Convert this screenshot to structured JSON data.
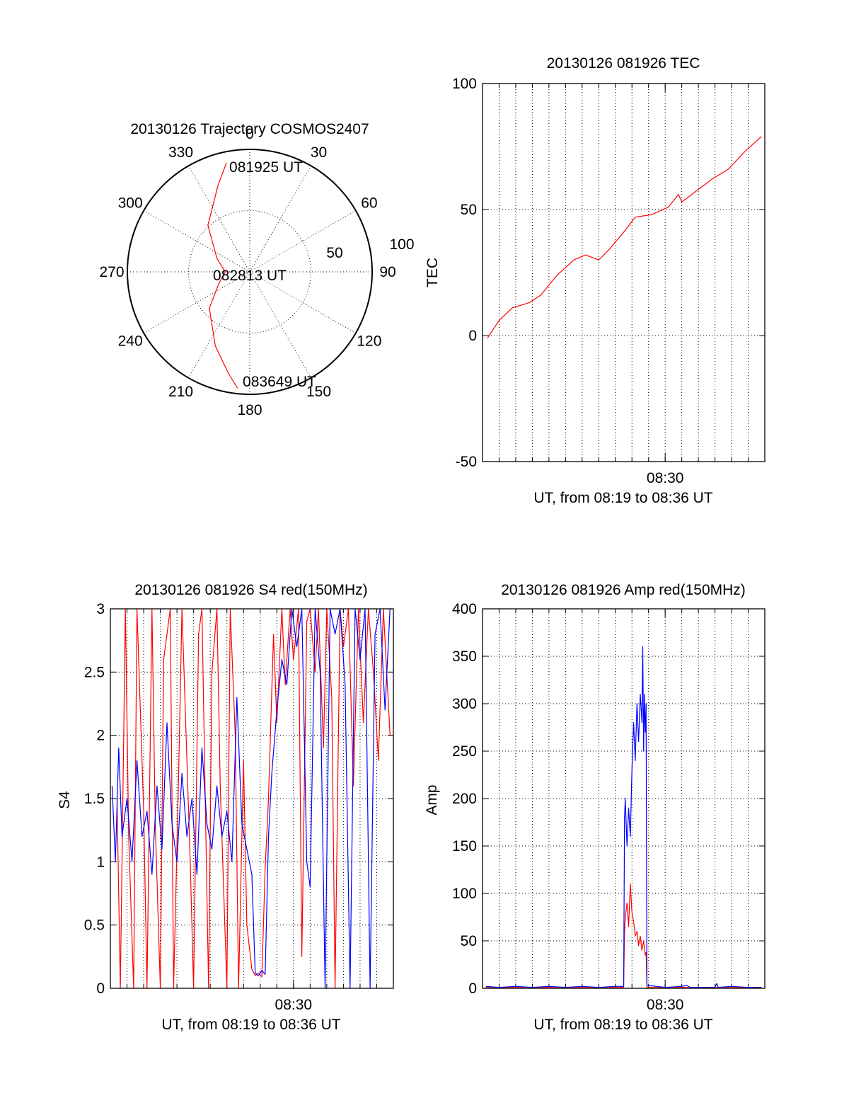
{
  "colors": {
    "red_channel": "#ff0000",
    "blue_channel": "#0000ff",
    "axes": "#000000",
    "grid": "#000000"
  },
  "chart_data": [
    {
      "id": "polar",
      "type": "polar",
      "title": "20130126 Trajectory COSMOS2407",
      "angle_labels": [
        "0",
        "30",
        "60",
        "90",
        "120",
        "150",
        "180",
        "210",
        "240",
        "270",
        "300",
        "330"
      ],
      "radius_labels": [
        "100",
        "50"
      ],
      "rlim": [
        0,
        100
      ],
      "grid": true,
      "annotations": [
        {
          "text": "081925 UT",
          "azimuth": 348,
          "elevation": 8
        },
        {
          "text": "082813 UT",
          "azimuth": 0,
          "elevation": 90
        },
        {
          "text": "083649 UT",
          "azimuth": 186,
          "elevation": 4
        }
      ],
      "series": [
        {
          "color": "#ff0000",
          "points": [
            [
              348,
              8
            ],
            [
              340,
              22
            ],
            [
              318,
              44
            ],
            [
              292,
              64
            ],
            [
              270,
              72
            ],
            [
              250,
              66
            ],
            [
              228,
              50
            ],
            [
              205,
              30
            ],
            [
              192,
              14
            ],
            [
              186,
              4
            ]
          ]
        }
      ]
    },
    {
      "id": "tec",
      "type": "line",
      "title": "20130126 081926 TEC",
      "xlabel": "UT, from 08:19 to 08:36 UT",
      "ylabel": "TEC",
      "xlim": [
        0,
        17
      ],
      "ylim": [
        -50,
        100
      ],
      "yticks": [
        "-50",
        "0",
        "50",
        "100"
      ],
      "xtick_label": "08:30",
      "xtick_at": 11,
      "grid": true,
      "series": [
        {
          "color": "#ff0000",
          "x": [
            0.3,
            1.0,
            1.8,
            2.8,
            3.5,
            4.5,
            5.5,
            6.2,
            7.0,
            7.6,
            8.5,
            9.2,
            10.2,
            11.2,
            11.8,
            12.0,
            12.8,
            13.8,
            14.8,
            15.8,
            16.8
          ],
          "y": [
            -1,
            6,
            11,
            13,
            16,
            24,
            30,
            32,
            30,
            34,
            41,
            47,
            48,
            51,
            56,
            53,
            57,
            62,
            66,
            73,
            79
          ]
        }
      ]
    },
    {
      "id": "s4",
      "type": "line",
      "title": "20130126 081926 S4 red(150MHz)",
      "xlabel": "UT, from 08:19 to 08:36 UT",
      "ylabel": "S4",
      "xlim": [
        0,
        17
      ],
      "ylim": [
        0,
        3
      ],
      "yticks": [
        "0",
        "0.5",
        "1",
        "1.5",
        "2",
        "2.5",
        "3"
      ],
      "xtick_label": "08:30",
      "xtick_at": 11,
      "grid": true,
      "series": [
        {
          "color": "#ff0000",
          "x": [
            0.4,
            0.6,
            0.9,
            1.1,
            1.4,
            1.6,
            2.0,
            2.2,
            2.5,
            2.7,
            3.0,
            3.2,
            3.6,
            3.8,
            4.1,
            4.3,
            4.8,
            5.0,
            5.3,
            5.5,
            5.9,
            6.1,
            6.4,
            6.6,
            7.0,
            7.2,
            7.5,
            7.7,
            8.0,
            8.2,
            8.5,
            8.7,
            8.9,
            9.1,
            9.3,
            9.5,
            9.8,
            10.0,
            10.3,
            10.5,
            10.8,
            11.0,
            11.3,
            11.5,
            11.8,
            12.0,
            12.3,
            12.5,
            12.8,
            13.0,
            13.3,
            13.5,
            13.8,
            14.0,
            14.3,
            14.6,
            14.9,
            15.2,
            15.5,
            15.8,
            16.1,
            16.4,
            16.8
          ],
          "y": [
            1.5,
            0.0,
            3.0,
            1.2,
            0.0,
            3.0,
            1.4,
            0.0,
            3.0,
            1.3,
            0.0,
            2.6,
            3.0,
            0.0,
            1.7,
            3.0,
            1.0,
            0.0,
            2.8,
            3.0,
            0.0,
            2.5,
            3.0,
            1.6,
            0.0,
            3.0,
            2.0,
            0.0,
            1.8,
            0.5,
            0.15,
            0.1,
            0.12,
            0.09,
            0.95,
            1.5,
            2.8,
            2.1,
            3.0,
            2.4,
            3.0,
            2.6,
            3.0,
            0.25,
            2.9,
            3.0,
            2.5,
            3.0,
            1.9,
            3.0,
            2.3,
            0.0,
            3.0,
            2.7,
            3.0,
            1.6,
            3.0,
            2.1,
            3.0,
            2.5,
            1.8,
            3.0,
            2.0
          ]
        },
        {
          "color": "#0000ff",
          "x": [
            0.1,
            0.3,
            0.5,
            0.7,
            1.0,
            1.3,
            1.6,
            1.9,
            2.2,
            2.5,
            2.8,
            3.1,
            3.4,
            3.7,
            4.0,
            4.3,
            4.6,
            4.9,
            5.2,
            5.5,
            5.8,
            6.1,
            6.4,
            6.7,
            7.0,
            7.3,
            7.6,
            7.9,
            8.2,
            8.5,
            8.7,
            8.9,
            9.1,
            9.3,
            9.5,
            9.7,
            10.0,
            10.3,
            10.6,
            10.9,
            11.2,
            11.5,
            11.8,
            12.0,
            12.3,
            12.6,
            12.9,
            13.2,
            13.5,
            13.8,
            14.1,
            14.4,
            14.7,
            15.0,
            15.3,
            15.6,
            15.9,
            16.2,
            16.5,
            16.8
          ],
          "y": [
            1.6,
            1.0,
            1.9,
            1.2,
            1.5,
            1.0,
            1.8,
            1.2,
            1.4,
            0.9,
            1.6,
            1.1,
            2.1,
            1.3,
            1.0,
            1.7,
            1.2,
            1.5,
            0.9,
            1.9,
            1.3,
            1.1,
            1.6,
            1.2,
            1.4,
            1.0,
            2.3,
            1.3,
            1.1,
            0.9,
            0.12,
            0.1,
            0.14,
            0.11,
            1.2,
            1.7,
            2.2,
            2.6,
            2.4,
            3.0,
            2.7,
            3.0,
            1.0,
            0.8,
            3.0,
            2.5,
            0.0,
            3.0,
            2.8,
            3.0,
            2.4,
            0.0,
            3.0,
            2.6,
            3.0,
            0.0,
            2.8,
            3.0,
            2.2,
            3.0
          ]
        }
      ]
    },
    {
      "id": "amp",
      "type": "line",
      "title": "20130126 081926 Amp red(150MHz)",
      "xlabel": "UT, from 08:19 to 08:36 UT",
      "ylabel": "Amp",
      "xlim": [
        0,
        17
      ],
      "ylim": [
        0,
        400
      ],
      "yticks": [
        "0",
        "50",
        "100",
        "150",
        "200",
        "250",
        "300",
        "350",
        "400"
      ],
      "xtick_label": "08:30",
      "xtick_at": 11,
      "grid": true,
      "series": [
        {
          "color": "#ff0000",
          "x": [
            0.2,
            8.5,
            8.55,
            8.6,
            8.7,
            8.8,
            8.9,
            9.0,
            9.1,
            9.2,
            9.3,
            9.4,
            9.5,
            9.6,
            9.7,
            9.8,
            9.85,
            9.9,
            16.8
          ],
          "y": [
            1,
            1,
            60,
            75,
            90,
            65,
            110,
            80,
            70,
            55,
            60,
            45,
            55,
            40,
            50,
            35,
            38,
            1,
            1
          ]
        },
        {
          "color": "#0000ff",
          "x": [
            0.2,
            1.0,
            2.0,
            3.0,
            4.0,
            5.0,
            6.0,
            7.0,
            8.0,
            8.5,
            8.55,
            8.6,
            8.7,
            8.8,
            8.9,
            9.0,
            9.1,
            9.2,
            9.3,
            9.4,
            9.5,
            9.6,
            9.65,
            9.7,
            9.75,
            9.8,
            9.85,
            9.9,
            10.5,
            11.0,
            12.0,
            12.3,
            12.5,
            14.0,
            14.1,
            14.2,
            15.0,
            16.0,
            16.8
          ],
          "y": [
            2,
            1,
            2,
            1,
            2,
            1,
            2,
            1,
            2,
            2,
            180,
            200,
            150,
            190,
            160,
            230,
            280,
            240,
            300,
            260,
            310,
            280,
            360,
            250,
            310,
            270,
            300,
            3,
            2,
            1,
            2,
            3,
            1,
            1,
            5,
            1,
            2,
            1,
            1
          ]
        }
      ]
    }
  ]
}
